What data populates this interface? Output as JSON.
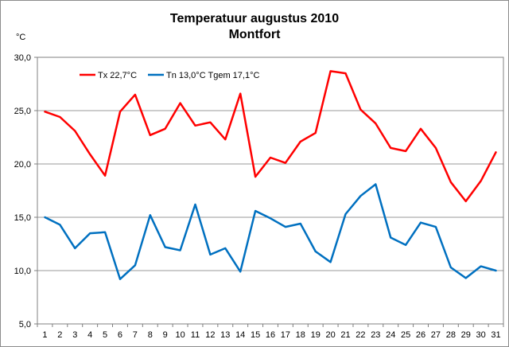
{
  "chart_data": {
    "type": "line",
    "title": "Temperatuur augustus 2010",
    "subtitle": "Montfort",
    "ylabel": "°C",
    "xlabel": "",
    "x": [
      1,
      2,
      3,
      4,
      5,
      6,
      7,
      8,
      9,
      10,
      11,
      12,
      13,
      14,
      15,
      16,
      17,
      18,
      19,
      20,
      21,
      22,
      23,
      24,
      25,
      26,
      27,
      28,
      29,
      30,
      31
    ],
    "ylim": [
      5,
      30
    ],
    "ytick_labels": [
      "5,0",
      "10,0",
      "15,0",
      "20,0",
      "25,0",
      "30,0"
    ],
    "grid": true,
    "legend_position": "top-left",
    "series": [
      {
        "name": "Tx 22,7°C",
        "color": "#ff0000",
        "values": [
          24.9,
          24.4,
          23.1,
          20.9,
          18.9,
          24.9,
          26.5,
          22.7,
          23.3,
          25.7,
          23.6,
          23.9,
          22.3,
          26.6,
          18.8,
          20.6,
          20.1,
          22.1,
          22.9,
          28.7,
          28.5,
          25.1,
          23.8,
          21.5,
          21.2,
          23.3,
          21.5,
          18.3,
          16.5,
          18.4,
          21.1
        ]
      },
      {
        "name": "Tn 13,0°C",
        "extra_label": "Tgem 17,1°C",
        "color": "#0070c0",
        "values": [
          15.0,
          14.3,
          12.1,
          13.5,
          13.6,
          9.2,
          10.5,
          15.2,
          12.2,
          11.9,
          16.2,
          11.5,
          12.1,
          9.9,
          15.6,
          14.9,
          14.1,
          14.4,
          11.8,
          10.8,
          15.3,
          17.0,
          18.1,
          13.1,
          12.4,
          14.5,
          14.1,
          10.3,
          9.3,
          10.4,
          10.0
        ]
      }
    ]
  }
}
